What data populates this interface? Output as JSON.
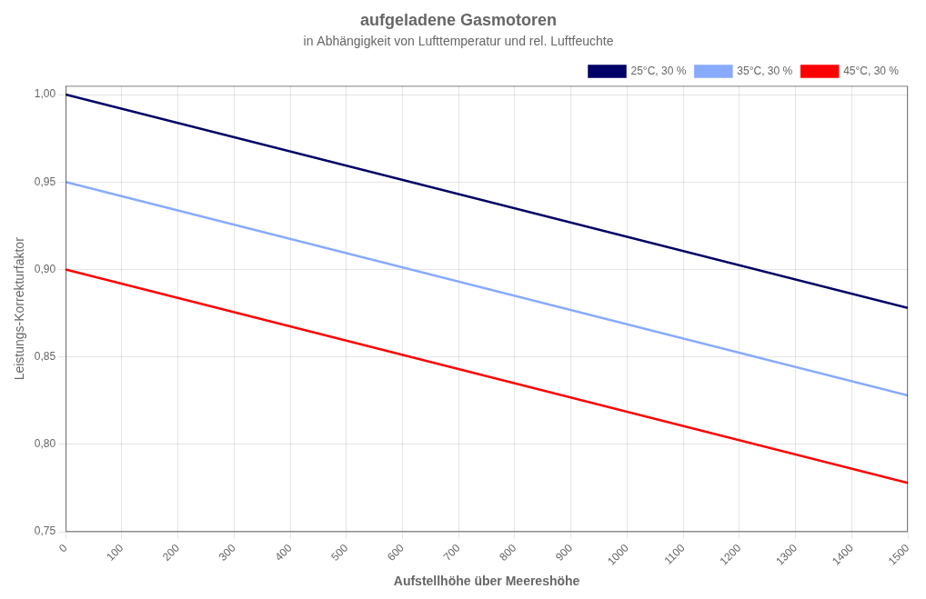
{
  "chart_data": {
    "type": "line",
    "title": "aufgeladene Gasmotoren",
    "subtitle": "in Abhängigkeit von Lufttemperatur und rel. Luftfeuchte",
    "x_label": "Aufstellhöhe über Meereshöhe",
    "y_label": "Leistungs-Korrekturfaktor",
    "x": [
      0,
      1500
    ],
    "series": [
      {
        "name": "25°C, 30 %",
        "color": "#000066",
        "values": [
          1.0,
          0.878
        ]
      },
      {
        "name": "35°C, 30 %",
        "color": "#88AAFF",
        "values": [
          0.95,
          0.828
        ]
      },
      {
        "name": "45°C, 30 %",
        "color": "#FF0000",
        "values": [
          0.9,
          0.778
        ]
      }
    ],
    "xlim": [
      0,
      1500
    ],
    "ylim": [
      0.75,
      1.005
    ],
    "xticks": [
      0,
      100,
      200,
      300,
      400,
      500,
      600,
      700,
      800,
      900,
      1000,
      1100,
      1200,
      1300,
      1400,
      1500
    ],
    "yticks": [
      {
        "value": 0.75,
        "label": "0,75"
      },
      {
        "value": 0.8,
        "label": "0,80"
      },
      {
        "value": 0.85,
        "label": "0,85"
      },
      {
        "value": 0.9,
        "label": "0,90"
      },
      {
        "value": 0.95,
        "label": "0,95"
      },
      {
        "value": 1.0,
        "label": "1,00"
      }
    ],
    "grid": true,
    "legend": "upper right"
  }
}
